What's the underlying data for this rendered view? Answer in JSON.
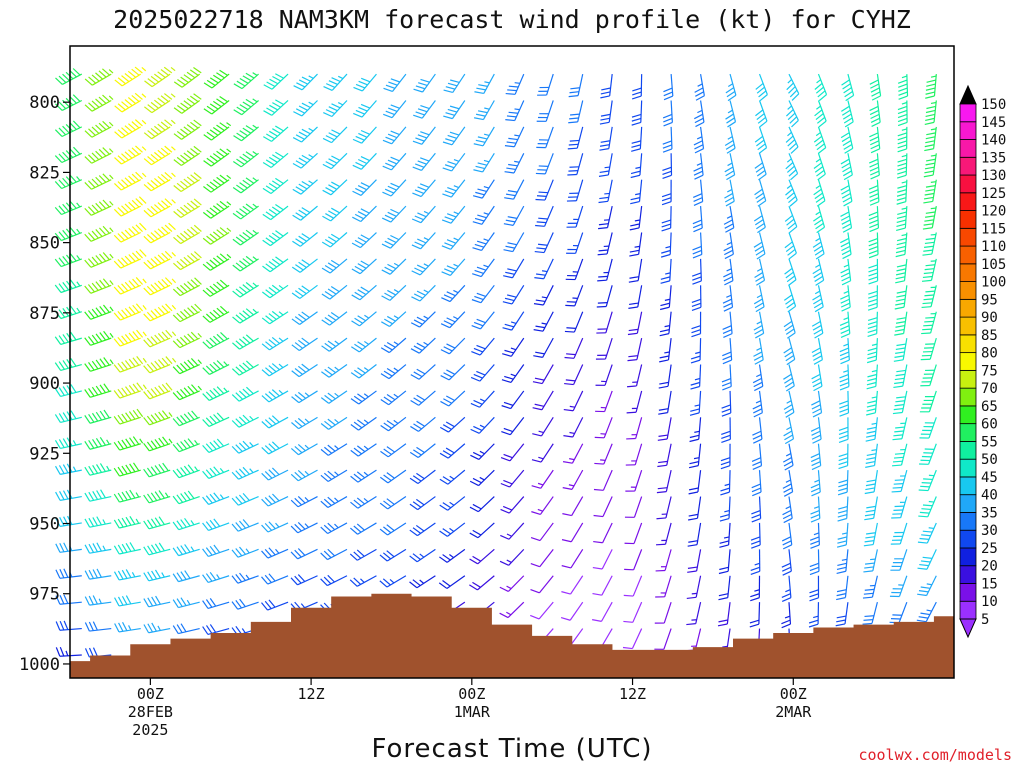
{
  "chart_data": {
    "type": "other",
    "title": "2025022718 NAM3KM forecast wind profile (kt) for CYHZ",
    "xlabel": "Forecast Time (UTC)",
    "ylabel": "",
    "credit": "coolwx.com/models",
    "y_axis": {
      "scale": "pressure (inverted)",
      "range": [
        1005,
        780
      ],
      "ticks": [
        800,
        825,
        850,
        875,
        900,
        925,
        950,
        975,
        1000
      ],
      "tick_labels": [
        "800",
        "825",
        "850",
        "875",
        "900",
        "925",
        "950",
        "975",
        "1000"
      ]
    },
    "x_axis": {
      "start": "2025-02-27 18Z",
      "end": "2025-03-02 12Z",
      "ticks": [
        {
          "time": "2025-02-28 00Z",
          "lines": [
            "00Z",
            "28FEB",
            "2025"
          ]
        },
        {
          "time": "2025-02-28 12Z",
          "lines": [
            "12Z"
          ]
        },
        {
          "time": "2025-03-01 00Z",
          "lines": [
            "00Z",
            "1MAR"
          ]
        },
        {
          "time": "2025-03-01 12Z",
          "lines": [
            "12Z"
          ]
        },
        {
          "time": "2025-03-02 00Z",
          "lines": [
            "00Z",
            "2MAR"
          ]
        }
      ]
    },
    "colorbar": {
      "unit": "kt",
      "levels": [
        5,
        10,
        15,
        20,
        25,
        30,
        35,
        40,
        45,
        50,
        55,
        60,
        65,
        70,
        75,
        80,
        85,
        90,
        95,
        100,
        105,
        110,
        115,
        120,
        125,
        130,
        135,
        140,
        145,
        150
      ],
      "colors": [
        "#9b30ff",
        "#7a10e8",
        "#3a10e0",
        "#1020e0",
        "#1048f0",
        "#1878f8",
        "#20a8f8",
        "#18c8f0",
        "#10e8c8",
        "#10f0a0",
        "#20f060",
        "#30f020",
        "#80f010",
        "#c8f010",
        "#f8f800",
        "#f8e000",
        "#f8c000",
        "#f8a800",
        "#f89000",
        "#f87800",
        "#f86000",
        "#f84800",
        "#f83000",
        "#f81818",
        "#f81040",
        "#f81878",
        "#f818a8",
        "#f818d0",
        "#f818f0",
        "#f830f8"
      ]
    },
    "terrain_color": "#a0522d",
    "surface_pressure": {
      "times": [
        "2025-02-27 18Z",
        "2025-02-27 21Z",
        "2025-02-28 00Z",
        "2025-02-28 03Z",
        "2025-02-28 06Z",
        "2025-02-28 09Z",
        "2025-02-28 12Z",
        "2025-02-28 15Z",
        "2025-02-28 18Z",
        "2025-02-28 21Z",
        "2025-03-01 00Z",
        "2025-03-01 03Z",
        "2025-03-01 06Z",
        "2025-03-01 09Z",
        "2025-03-01 12Z",
        "2025-03-01 15Z",
        "2025-03-01 18Z",
        "2025-03-01 21Z",
        "2025-03-02 00Z",
        "2025-03-02 03Z",
        "2025-03-02 06Z",
        "2025-03-02 09Z",
        "2025-03-02 12Z"
      ],
      "values": [
        999,
        997,
        993,
        991,
        989,
        985,
        980,
        976,
        975,
        976,
        980,
        986,
        990,
        993,
        995,
        995,
        994,
        991,
        989,
        987,
        986,
        985,
        983
      ]
    },
    "wind_summary": {
      "description_levels_hPa": [
        800,
        850,
        900,
        950
      ],
      "times": [
        "2025-02-27 18Z",
        "2025-02-28 00Z",
        "2025-02-28 06Z",
        "2025-02-28 12Z",
        "2025-02-28 18Z",
        "2025-03-01 00Z",
        "2025-03-01 06Z",
        "2025-03-01 12Z",
        "2025-03-01 18Z",
        "2025-03-02 00Z",
        "2025-03-02 06Z",
        "2025-03-02 12Z"
      ],
      "speed_kt": {
        "800": [
          55,
          78,
          62,
          45,
          40,
          38,
          32,
          28,
          35,
          45,
          52,
          58
        ],
        "850": [
          52,
          82,
          65,
          42,
          38,
          36,
          28,
          22,
          32,
          42,
          50,
          56
        ],
        "900": [
          45,
          78,
          55,
          38,
          34,
          30,
          18,
          14,
          28,
          38,
          45,
          52
        ],
        "950": [
          38,
          55,
          42,
          34,
          32,
          25,
          12,
          10,
          22,
          32,
          40,
          45
        ]
      }
    }
  }
}
